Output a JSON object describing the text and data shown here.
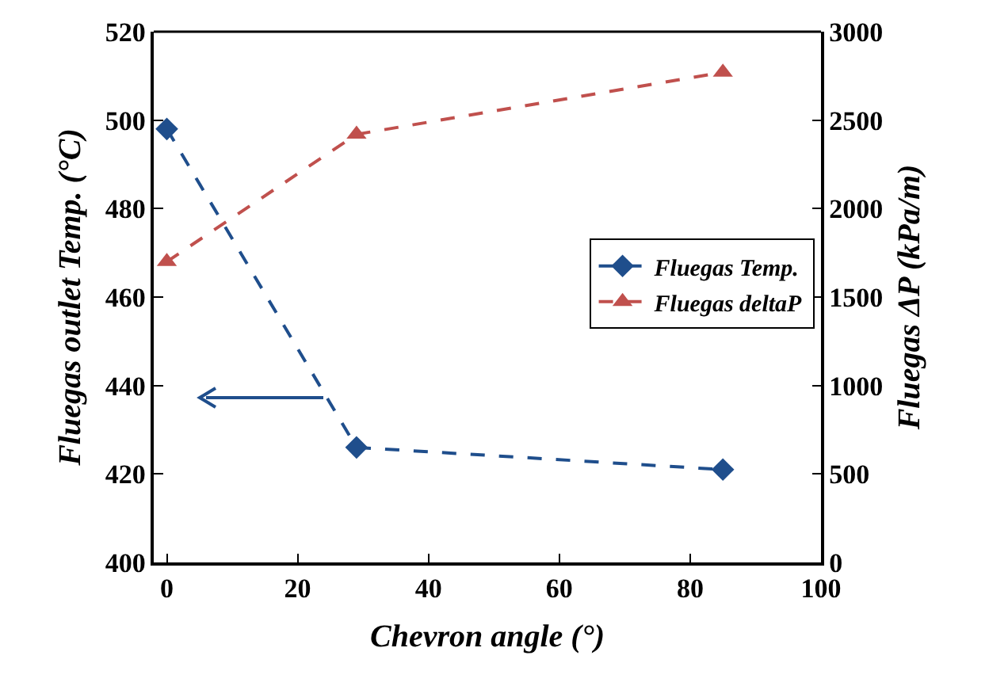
{
  "chart_data": {
    "type": "line",
    "xlabel": "Chevron angle (°)",
    "ylabel": "Fluegas outlet Temp. (°C)",
    "y2label": "Fluegas ΔP (kPa/m)",
    "x": [
      0,
      29,
      85
    ],
    "series": [
      {
        "name": "Fluegas Temp.",
        "color": "#1f4e8c",
        "values": [
          498,
          426,
          421
        ],
        "marker": "diamond"
      },
      {
        "name": "Fluegas deltaP",
        "color": "#c0504d",
        "values": [
          1700,
          2420,
          2770
        ],
        "marker": "triangle",
        "axis": "y2"
      }
    ],
    "xlim": [
      -2,
      100
    ],
    "xticks": [
      0,
      20,
      40,
      60,
      80,
      100
    ],
    "ylim": [
      400,
      520
    ],
    "yticks": [
      400,
      420,
      440,
      460,
      480,
      500,
      520
    ],
    "y2lim": [
      0,
      3000
    ],
    "y2ticks": [
      0,
      500,
      1000,
      1500,
      2000,
      2500,
      3000
    ],
    "grid": false,
    "legend": "right",
    "line_style": "dashed"
  }
}
